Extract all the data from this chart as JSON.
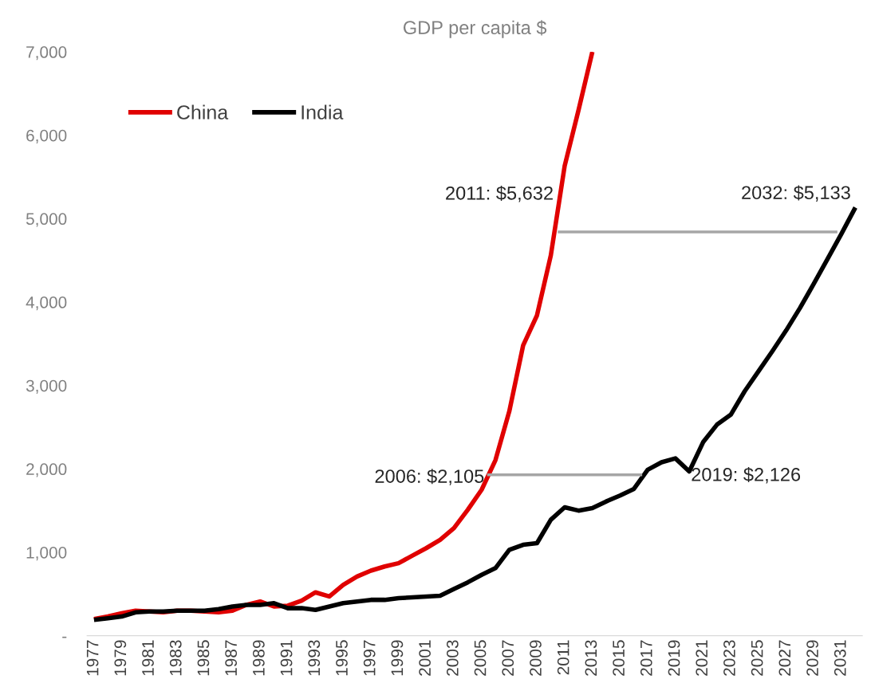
{
  "chart_data": {
    "type": "line",
    "title": "GDP per capita $",
    "x": [
      1977,
      1978,
      1979,
      1980,
      1981,
      1982,
      1983,
      1984,
      1985,
      1986,
      1987,
      1988,
      1989,
      1990,
      1991,
      1992,
      1993,
      1994,
      1995,
      1996,
      1997,
      1998,
      1999,
      2000,
      2001,
      2002,
      2003,
      2004,
      2005,
      2006,
      2007,
      2008,
      2009,
      2010,
      2011,
      2012,
      2013,
      2014,
      2015,
      2016,
      2017,
      2018,
      2019,
      2020,
      2021,
      2022,
      2023,
      2024,
      2025,
      2026,
      2027,
      2028,
      2029,
      2030,
      2031,
      2032
    ],
    "series": [
      {
        "name": "China",
        "color": "#e00000",
        "values": [
          200,
          230,
          270,
          300,
          290,
          280,
          300,
          300,
          290,
          280,
          300,
          370,
          410,
          350,
          360,
          420,
          520,
          470,
          610,
          710,
          780,
          830,
          870,
          960,
          1050,
          1150,
          1290,
          1510,
          1750,
          2105,
          2690,
          3480,
          3840,
          4560,
          5632,
          6300,
          7000,
          null,
          null,
          null,
          null,
          null,
          null,
          null,
          null,
          null,
          null,
          null,
          null,
          null,
          null,
          null,
          null,
          null,
          null,
          null
        ]
      },
      {
        "name": "India",
        "color": "#000000",
        "values": [
          190,
          210,
          230,
          280,
          290,
          290,
          300,
          300,
          300,
          320,
          350,
          370,
          370,
          390,
          330,
          330,
          310,
          350,
          390,
          410,
          430,
          430,
          450,
          460,
          470,
          480,
          560,
          640,
          730,
          810,
          1030,
          1090,
          1110,
          1390,
          1540,
          1500,
          1530,
          1610,
          1680,
          1760,
          1990,
          2080,
          2126,
          1970,
          2320,
          2530,
          2650,
          2930,
          3170,
          3410,
          3660,
          3930,
          4220,
          4520,
          4820,
          5133
        ]
      },
      {
        "color": "#a6a6a6",
        "x": [
          2005.4,
          2016.6
        ],
        "values": [
          1930,
          1930
        ]
      },
      {
        "color": "#a6a6a6",
        "x": [
          2010.5,
          2030.7
        ],
        "values": [
          4840,
          4840
        ]
      }
    ],
    "annotations": [
      {
        "text": "2006: $2,105",
        "x": 2006,
        "y": 2105
      },
      {
        "text": "2011: $5,632",
        "x": 2011,
        "y": 5632
      },
      {
        "text": "2019: $2,126",
        "x": 2019,
        "y": 2126
      },
      {
        "text": "2032: $5,133",
        "x": 2032,
        "y": 5133
      }
    ],
    "xlim": [
      1976.5,
      2032.5
    ],
    "xticks": [
      1977,
      1979,
      1981,
      1983,
      1985,
      1987,
      1989,
      1991,
      1993,
      1995,
      1997,
      1999,
      2001,
      2003,
      2005,
      2007,
      2009,
      2011,
      2013,
      2015,
      2017,
      2019,
      2021,
      2023,
      2025,
      2027,
      2029,
      2031
    ],
    "ylim": [
      0,
      7000
    ],
    "yticks": [
      {
        "value": 0,
        "label": "-"
      },
      {
        "value": 1000,
        "label": "1,000"
      },
      {
        "value": 2000,
        "label": "2,000"
      },
      {
        "value": 3000,
        "label": "3,000"
      },
      {
        "value": 4000,
        "label": "4,000"
      },
      {
        "value": 5000,
        "label": "5,000"
      },
      {
        "value": 6000,
        "label": "6,000"
      },
      {
        "value": 7000,
        "label": "7,000"
      }
    ],
    "grid": false,
    "legend": "top left",
    "marker": "none",
    "line_style": "solid"
  }
}
